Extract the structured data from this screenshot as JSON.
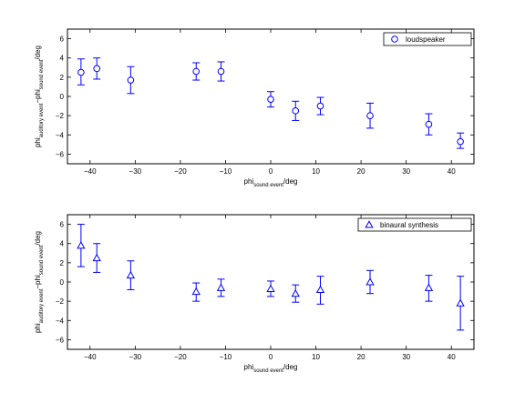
{
  "chart_data": [
    {
      "type": "scatter",
      "error_bars": true,
      "marker": "circle",
      "color": "#0000ff",
      "xlim": [
        -45,
        45
      ],
      "ylim": [
        -7,
        7
      ],
      "xticks": [
        -40,
        -30,
        -20,
        -10,
        0,
        10,
        20,
        30,
        40
      ],
      "yticks": [
        -6,
        -4,
        -2,
        0,
        2,
        4,
        6
      ],
      "xlabel": {
        "main": "phi",
        "sub": "sound event",
        "tail": "/deg"
      },
      "ylabel": {
        "main1": "phi",
        "sub1": "auditory event",
        "mid": "−phi",
        "sub2": "sound event",
        "tail": "/deg"
      },
      "legend": {
        "position": "top-right",
        "label": "loudspeaker"
      },
      "series": [
        {
          "name": "loudspeaker",
          "x": [
            -42,
            -38.5,
            -31,
            -16.5,
            -11,
            0,
            5.5,
            11,
            22,
            35,
            42
          ],
          "y": [
            2.5,
            2.9,
            1.7,
            2.6,
            2.6,
            -0.3,
            -1.5,
            -1.0,
            -2.0,
            -2.9,
            -4.7
          ],
          "lower": [
            1.2,
            1.8,
            0.3,
            1.7,
            1.6,
            -1.1,
            -2.5,
            -1.9,
            -3.3,
            -4.0,
            -5.4
          ],
          "upper": [
            3.9,
            4.0,
            3.1,
            3.5,
            3.6,
            0.5,
            -0.5,
            -0.1,
            -0.7,
            -1.8,
            -3.8
          ]
        }
      ]
    },
    {
      "type": "scatter",
      "error_bars": true,
      "marker": "triangle",
      "color": "#0000ff",
      "xlim": [
        -45,
        45
      ],
      "ylim": [
        -7,
        7
      ],
      "xticks": [
        -40,
        -30,
        -20,
        -10,
        0,
        10,
        20,
        30,
        40
      ],
      "yticks": [
        -6,
        -4,
        -2,
        0,
        2,
        4,
        6
      ],
      "xlabel": {
        "main": "phi",
        "sub": "sound event",
        "tail": "/deg"
      },
      "ylabel": {
        "main1": "phi",
        "sub1": "auditory event",
        "mid": "−phi",
        "sub2": "sound event",
        "tail": "/deg"
      },
      "legend": {
        "position": "top-right",
        "label": "binaural synthesis"
      },
      "series": [
        {
          "name": "binaural synthesis",
          "x": [
            -42,
            -38.5,
            -31,
            -16.5,
            -11,
            0,
            5.5,
            11,
            22,
            35,
            42
          ],
          "y": [
            3.8,
            2.5,
            0.7,
            -1.0,
            -0.6,
            -0.7,
            -1.2,
            -0.8,
            0.0,
            -0.6,
            -2.2
          ],
          "lower": [
            1.6,
            1.0,
            -0.8,
            -2.0,
            -1.5,
            -1.5,
            -2.1,
            -2.3,
            -1.2,
            -2.0,
            -5.0
          ],
          "upper": [
            6.0,
            4.0,
            2.2,
            -0.1,
            0.3,
            0.1,
            -0.3,
            0.6,
            1.2,
            0.7,
            0.6
          ]
        }
      ]
    }
  ]
}
